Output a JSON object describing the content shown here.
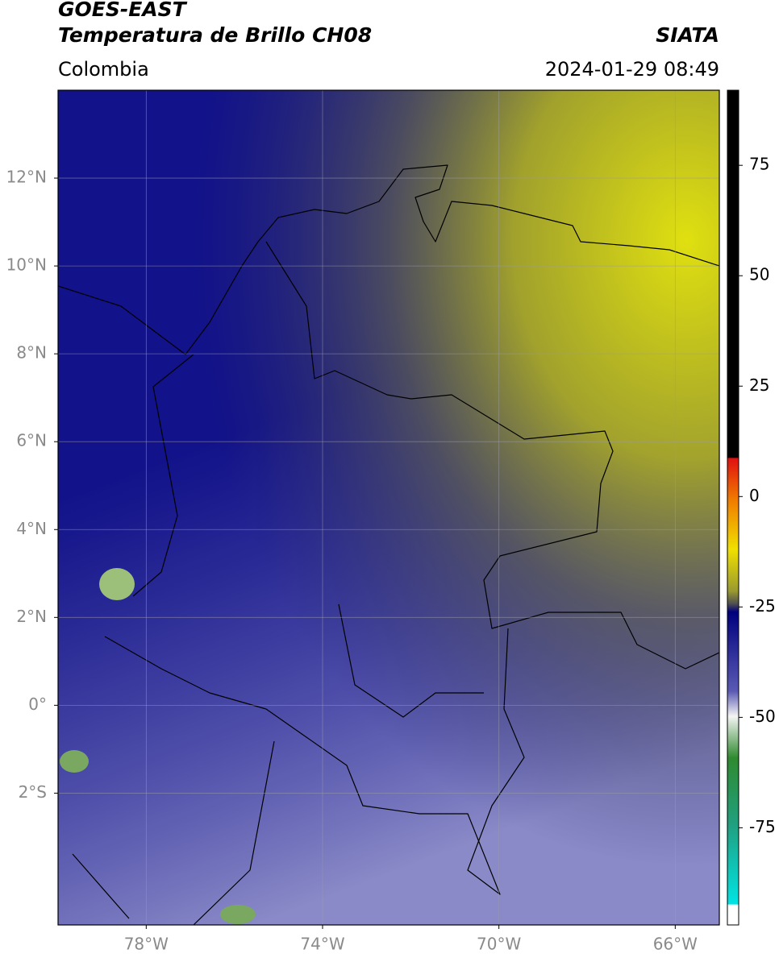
{
  "header": {
    "title": "GOES-EAST",
    "subtitle": "Temperatura de Brillo CH08",
    "region": "Colombia",
    "source": "SIATA",
    "datetime": "2024-01-29 08:49"
  },
  "map": {
    "lonlim": [
      -80,
      -65
    ],
    "latlim": [
      -5,
      14
    ],
    "lonticks": [
      {
        "value": -78,
        "label": "78°W"
      },
      {
        "value": -74,
        "label": "74°W"
      },
      {
        "value": -70,
        "label": "70°W"
      },
      {
        "value": -66,
        "label": "66°W"
      }
    ],
    "latticks": [
      {
        "value": 12,
        "label": "12°N"
      },
      {
        "value": 10,
        "label": "10°N"
      },
      {
        "value": 8,
        "label": "8°N"
      },
      {
        "value": 6,
        "label": "6°N"
      },
      {
        "value": 4,
        "label": "4°N"
      },
      {
        "value": 2,
        "label": "2°N"
      },
      {
        "value": 0,
        "label": "0°"
      },
      {
        "value": -2,
        "label": "2°S"
      }
    ],
    "grid": true
  },
  "colorbar": {
    "lim": [
      -97,
      92
    ],
    "ticks": [
      75,
      50,
      25,
      0,
      -25,
      -50,
      -75
    ]
  }
}
